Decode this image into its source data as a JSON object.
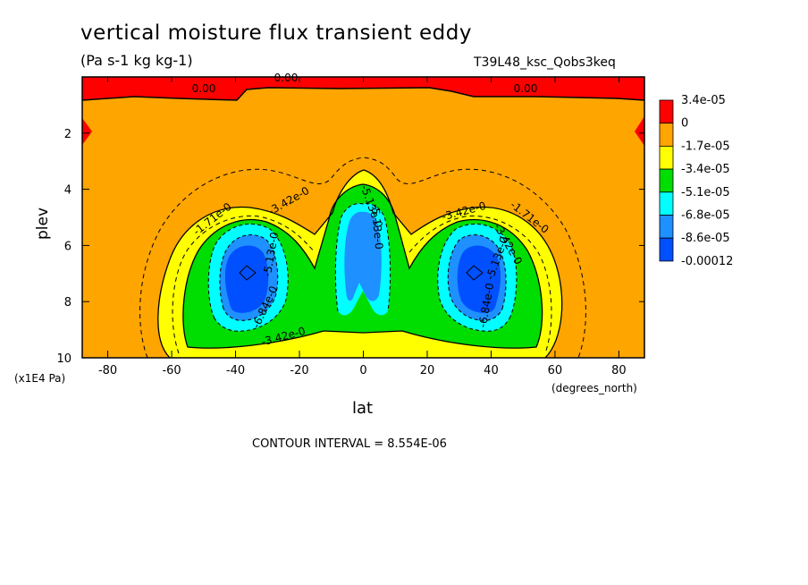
{
  "header": {
    "title": "vertical moisture flux transient eddy",
    "units": "(Pa s-1 kg kg-1)",
    "run_name": "T39L48_ksc_Qobs3keq"
  },
  "chart_data": {
    "type": "heatmap",
    "title": "vertical moisture flux transient eddy",
    "xlabel": "lat",
    "xunits": "(degrees_north)",
    "ylabel": "plev",
    "yunits": "(x1E4 Pa)",
    "xlim": [
      -88,
      88
    ],
    "ylim": [
      10,
      0
    ],
    "x_ticks": [
      "-80",
      "-60",
      "-40",
      "-20",
      "0",
      "20",
      "40",
      "60",
      "80"
    ],
    "y_ticks": [
      "2",
      "4",
      "6",
      "8",
      "10"
    ],
    "contour_interval": "CONTOUR INTERVAL = 8.554E-06",
    "legend": {
      "placement": "right",
      "levels": [
        "3.4e-05",
        "0",
        "-1.7e-05",
        "-3.4e-05",
        "-5.1e-05",
        "-6.8e-05",
        "-8.6e-05",
        "-0.00012"
      ],
      "colors": [
        "#ff0000",
        "#ffa500",
        "#ffff00",
        "#00dd00",
        "#00ffff",
        "#1e90ff",
        "#0050ff"
      ]
    },
    "contour_labels": [
      "0.00",
      "0.00",
      "0.00",
      "-1.71e-0",
      "-1.71e-0",
      "-3.42e-0",
      "-3.42e-0",
      "-3.42e-0",
      "-6.84e-0",
      "-6.84e-0",
      "-5.13e-0",
      "-5.13e-0",
      "-5.13e-0",
      "-5.13e-0",
      "-3.42e-0"
    ],
    "features": [
      {
        "name": "southern minimum",
        "lat": -35,
        "plev": 7.0,
        "level_color": "#0050ff"
      },
      {
        "name": "equatorial minimum",
        "lat": 3,
        "plev": 6.5,
        "level_color": "#1e90ff"
      },
      {
        "name": "northern minimum",
        "lat": 36,
        "plev": 7.0,
        "level_color": "#0050ff"
      }
    ]
  }
}
